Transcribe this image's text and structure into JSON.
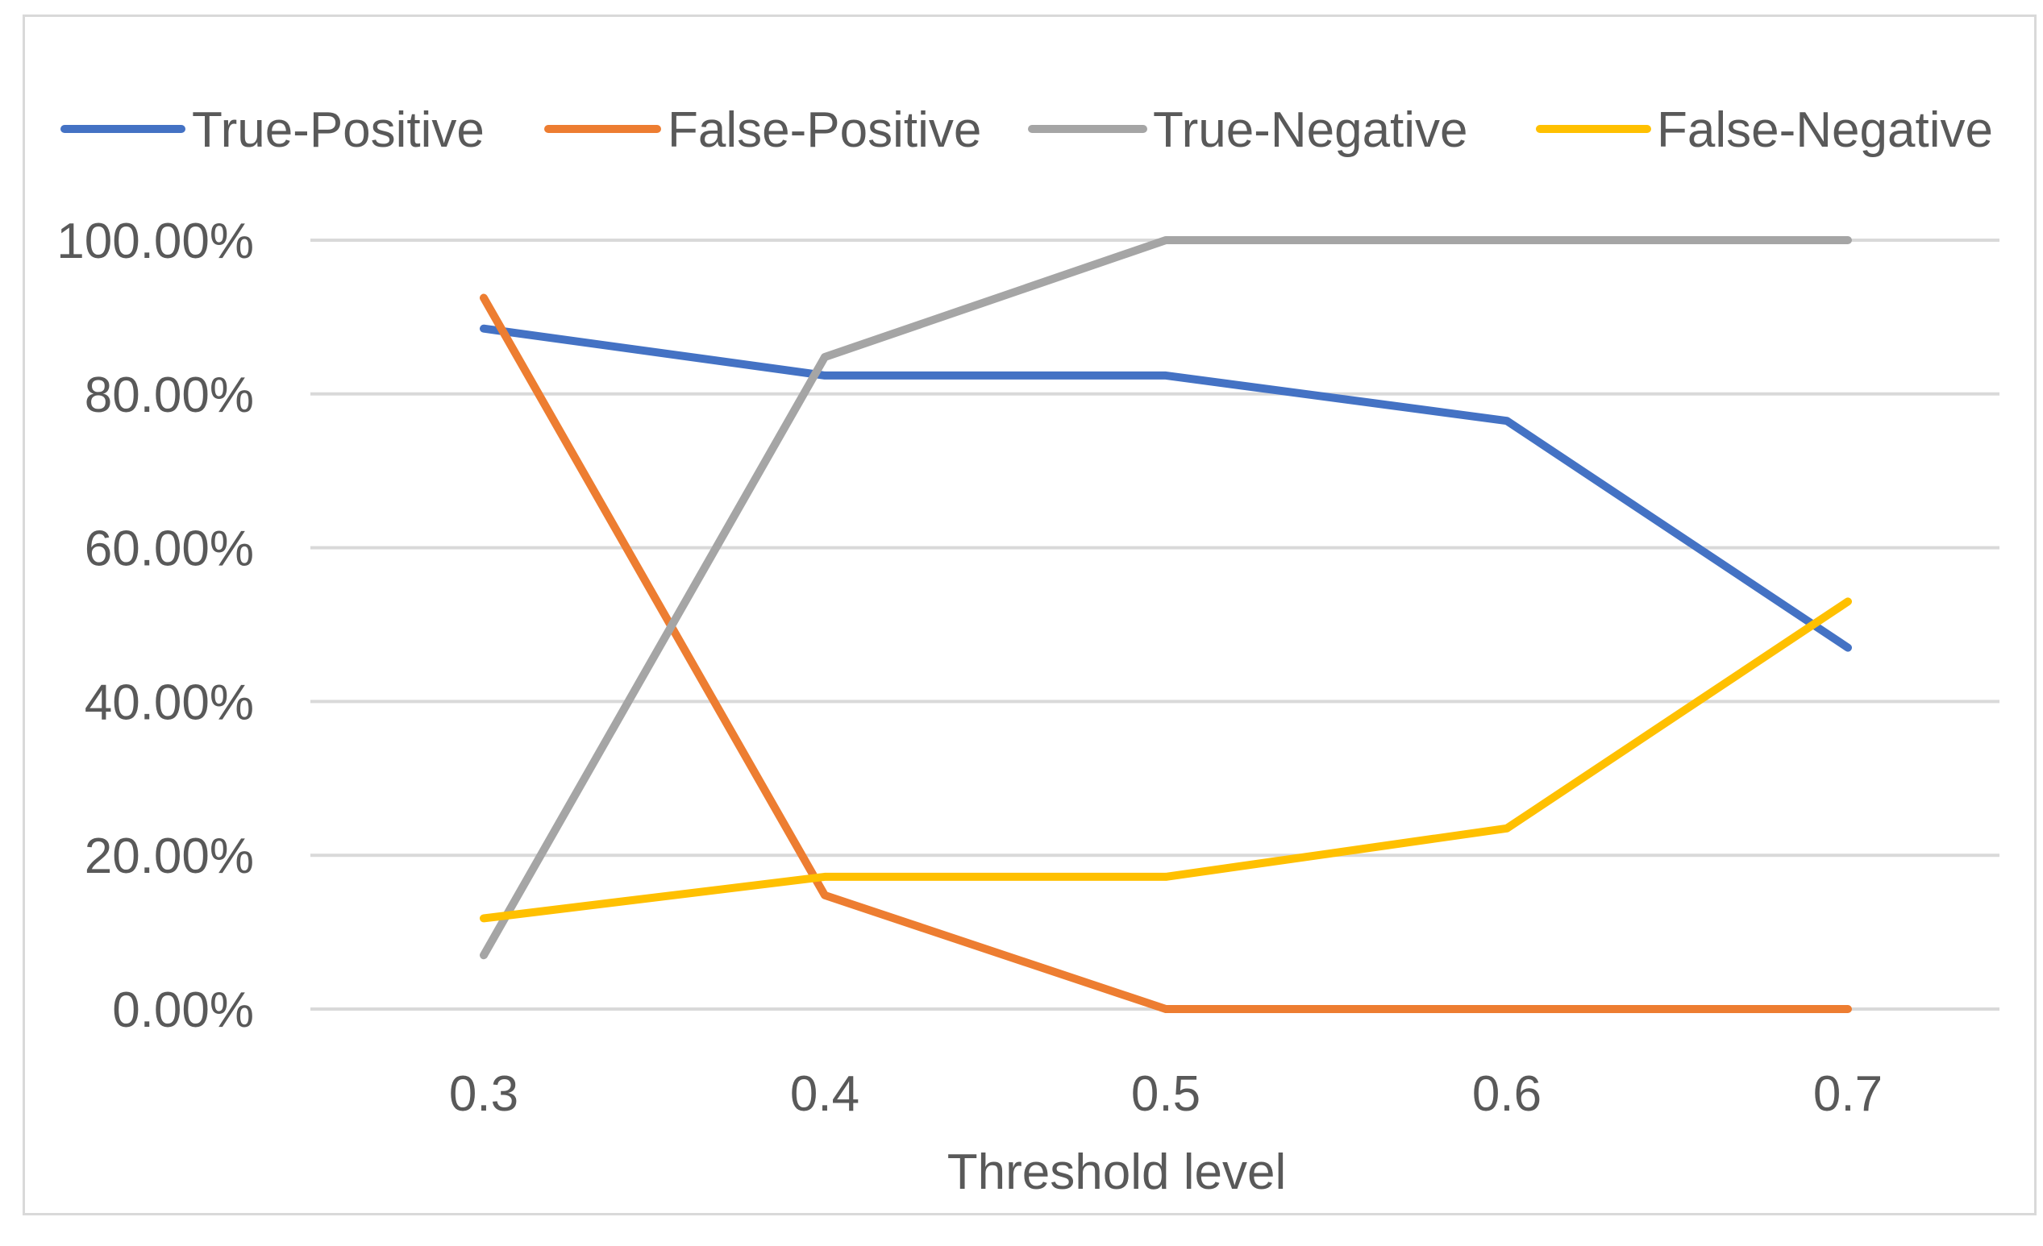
{
  "chart_data": {
    "type": "line",
    "title": "",
    "xlabel": "Threshold level",
    "ylabel": "",
    "categories": [
      "0.3",
      "0.4",
      "0.5",
      "0.6",
      "0.7"
    ],
    "ylim": [
      0,
      1
    ],
    "yticks": [
      0,
      0.2,
      0.4,
      0.6,
      0.8,
      1.0
    ],
    "ytick_labels": [
      "0.00%",
      "20.00%",
      "40.00%",
      "60.00%",
      "80.00%",
      "100.00%"
    ],
    "grid": true,
    "legend_position": "top",
    "series": [
      {
        "name": "True-Positive",
        "color": "#4472c4",
        "values": [
          0.885,
          0.824,
          0.824,
          0.765,
          0.47
        ]
      },
      {
        "name": "False-Positive",
        "color": "#ed7d31",
        "values": [
          0.925,
          0.148,
          0.0,
          0.0,
          0.0
        ]
      },
      {
        "name": "True-Negative",
        "color": "#a5a5a5",
        "values": [
          0.07,
          0.848,
          1.0,
          1.0,
          1.0
        ]
      },
      {
        "name": "False-Negative",
        "color": "#ffc000",
        "values": [
          0.118,
          0.172,
          0.172,
          0.235,
          0.53
        ]
      }
    ]
  }
}
